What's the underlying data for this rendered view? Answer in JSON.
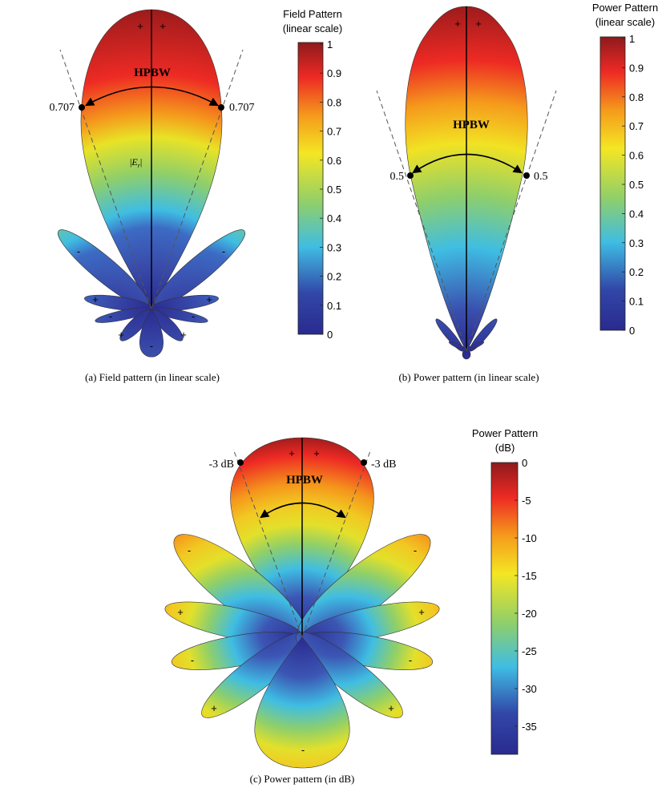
{
  "colormap": [
    "#2a2a8f",
    "#3c56b4",
    "#3fbde3",
    "#8fcf6a",
    "#f4e623",
    "#f59a1c",
    "#ee2a24",
    "#9a1b1c"
  ],
  "panel_a": {
    "caption": "(a) Field pattern (in linear scale)",
    "hpbw": "HPBW",
    "left_point": "0.707",
    "right_point": "0.707",
    "field_label_pre": "|",
    "field_label_E": "E",
    "field_label_sub": "r",
    "field_label_post": "|",
    "signs": [
      "+",
      "+",
      "-",
      "-",
      "+",
      "+",
      "-",
      "-",
      "+",
      "+",
      "-"
    ],
    "colorbar": {
      "title_line1": "Field Pattern",
      "title_line2": "(linear scale)",
      "ticks": [
        "1",
        "0.9",
        "0.8",
        "0.7",
        "0.6",
        "0.5",
        "0.4",
        "0.3",
        "0.2",
        "0.1",
        "0"
      ]
    }
  },
  "panel_b": {
    "caption": "(b) Power pattern (in linear scale)",
    "hpbw": "HPBW",
    "left_point": "0.5",
    "right_point": "0.5",
    "signs": [
      "+",
      "+"
    ],
    "colorbar": {
      "title_line1": "Power Pattern",
      "title_line2": "(linear scale)",
      "ticks": [
        "1",
        "0.9",
        "0.8",
        "0.7",
        "0.6",
        "0.5",
        "0.4",
        "0.3",
        "0.2",
        "0.1",
        "0"
      ]
    }
  },
  "panel_c": {
    "caption": "(c) Power pattern (in dB)",
    "hpbw": "HPBW",
    "left_point": "-3 dB",
    "right_point": "-3 dB",
    "signs": [
      "+",
      "+",
      "-",
      "-",
      "+",
      "+",
      "-",
      "-",
      "+",
      "+",
      "-"
    ],
    "colorbar": {
      "title_line1": "Power Pattern",
      "title_line2": "(dB)",
      "ticks": [
        "0",
        "-5",
        "-10",
        "-15",
        "-20",
        "-25",
        "-30",
        "-35"
      ]
    }
  }
}
